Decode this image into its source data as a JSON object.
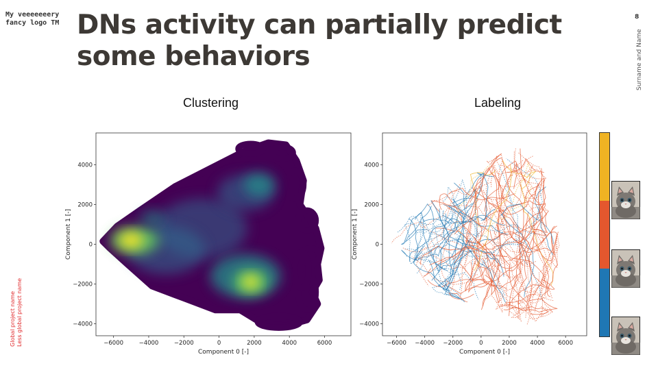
{
  "header": {
    "logo_line1": "My veeeeeeery",
    "logo_line2": "fancy logo TM",
    "title_line1": "DNs activity can partially predict",
    "title_line2": "some behaviors",
    "slide_number": "8",
    "author": "Surname and Name"
  },
  "footer": {
    "project_line1": "Global project name",
    "project_line2": "Less global project name"
  },
  "panels": {
    "left_title": "Clustering",
    "right_title": "Labeling"
  },
  "colors": {
    "title": "#3d3935",
    "accent_red": "#e0292b",
    "viridis_dark": "#440154",
    "viridis_mid": "#31688e",
    "viridis_teal": "#21918c",
    "viridis_green": "#5ec962",
    "viridis_yellow": "#fde725",
    "label_blue": "#1f77b4",
    "label_orange": "#e4572e",
    "label_yellow": "#f0b323"
  },
  "legend": {
    "segments": [
      {
        "color": "#f0b323",
        "fraction": 0.333
      },
      {
        "color": "#e4572e",
        "fraction": 0.333
      },
      {
        "color": "#1f77b4",
        "fraction": 0.334
      }
    ],
    "thumbnail_icons": [
      "kitten-photo",
      "kitten-photo",
      "kitten-photo"
    ]
  },
  "chart_data": [
    {
      "type": "scatter",
      "title": "",
      "xlabel": "Component 0 [-]",
      "ylabel": "Component 1 [-]",
      "xlim": [
        -7000,
        7500
      ],
      "ylim": [
        -4600,
        5600
      ],
      "xticks": [
        -6000,
        -4000,
        -2000,
        0,
        2000,
        4000,
        6000
      ],
      "yticks": [
        -4000,
        -2000,
        0,
        2000,
        4000
      ],
      "xtick_labels": [
        "−6000",
        "−4000",
        "−2000",
        "0",
        "2000",
        "4000",
        "6000"
      ],
      "ytick_labels": [
        "−4000",
        "−2000",
        "0",
        "2000",
        "4000"
      ],
      "grid": false,
      "density_peaks": [
        {
          "x": -5000,
          "y": 200,
          "level": "high"
        },
        {
          "x": 1800,
          "y": -1900,
          "level": "high"
        },
        {
          "x": 2200,
          "y": 3000,
          "level": "medium"
        }
      ]
    },
    {
      "type": "line",
      "title": "",
      "xlabel": "Component 0 [-]",
      "ylabel": "Component 1 [-]",
      "xlim": [
        -7000,
        7500
      ],
      "ylim": [
        -4600,
        5600
      ],
      "xticks": [
        -6000,
        -4000,
        -2000,
        0,
        2000,
        4000,
        6000
      ],
      "yticks": [
        -4000,
        -2000,
        0,
        2000,
        4000
      ],
      "xtick_labels": [
        "−6000",
        "−4000",
        "−2000",
        "0",
        "2000",
        "4000",
        "6000"
      ],
      "ytick_labels": [
        "−4000",
        "−2000",
        "0",
        "2000",
        "4000"
      ],
      "grid": false
    }
  ]
}
